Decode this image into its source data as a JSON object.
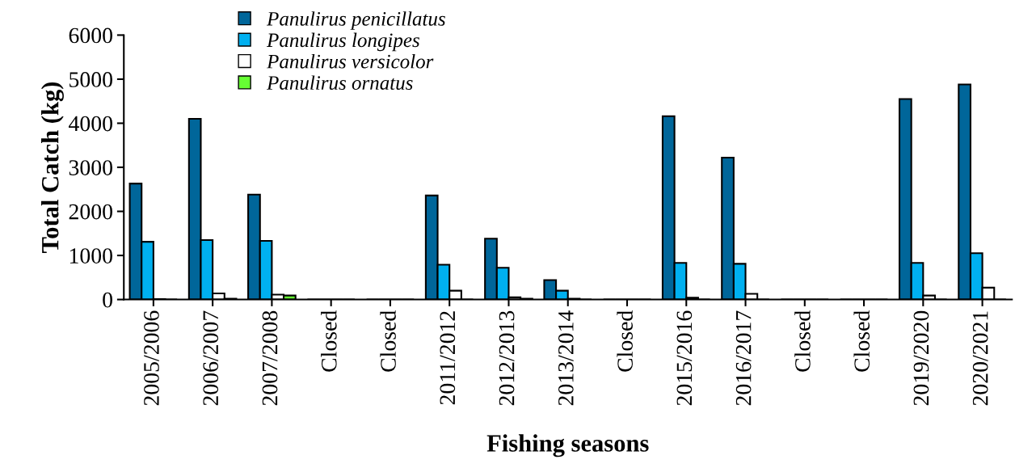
{
  "chart_data": {
    "type": "bar",
    "xlabel": "Fishing seasons",
    "ylabel": "Total Catch (kg)",
    "categories": [
      "2005/2006",
      "2006/2007",
      "2007/2008",
      "Closed",
      "Closed",
      "2011/2012",
      "2012/2013",
      "2013/2014",
      "Closed",
      "2015/2016",
      "2016/2017",
      "Closed",
      "Closed",
      "2019/2020",
      "2020/2021"
    ],
    "series": [
      {
        "name": "Panulirus penicillatus",
        "color": "#00669a",
        "values": [
          2630,
          4100,
          2380,
          0,
          0,
          2360,
          1380,
          440,
          0,
          4160,
          3220,
          0,
          0,
          4550,
          4880
        ]
      },
      {
        "name": "Panulirus longipes",
        "color": "#00b0f0",
        "values": [
          1310,
          1350,
          1330,
          0,
          0,
          790,
          720,
          200,
          0,
          830,
          810,
          0,
          0,
          830,
          1050
        ]
      },
      {
        "name": "Panulirus versicolor",
        "color": "#ffffff",
        "values": [
          10,
          140,
          110,
          0,
          0,
          200,
          50,
          20,
          0,
          40,
          130,
          0,
          0,
          90,
          270
        ]
      },
      {
        "name": "Panulirus ornatus",
        "color": "#66ff33",
        "values": [
          0,
          20,
          90,
          0,
          0,
          0,
          20,
          0,
          0,
          0,
          0,
          0,
          0,
          0,
          0
        ]
      }
    ],
    "ylim": [
      0,
      6000
    ],
    "yticks": [
      0,
      1000,
      2000,
      3000,
      4000,
      5000,
      6000
    ],
    "grid": false,
    "legend": "top left"
  }
}
